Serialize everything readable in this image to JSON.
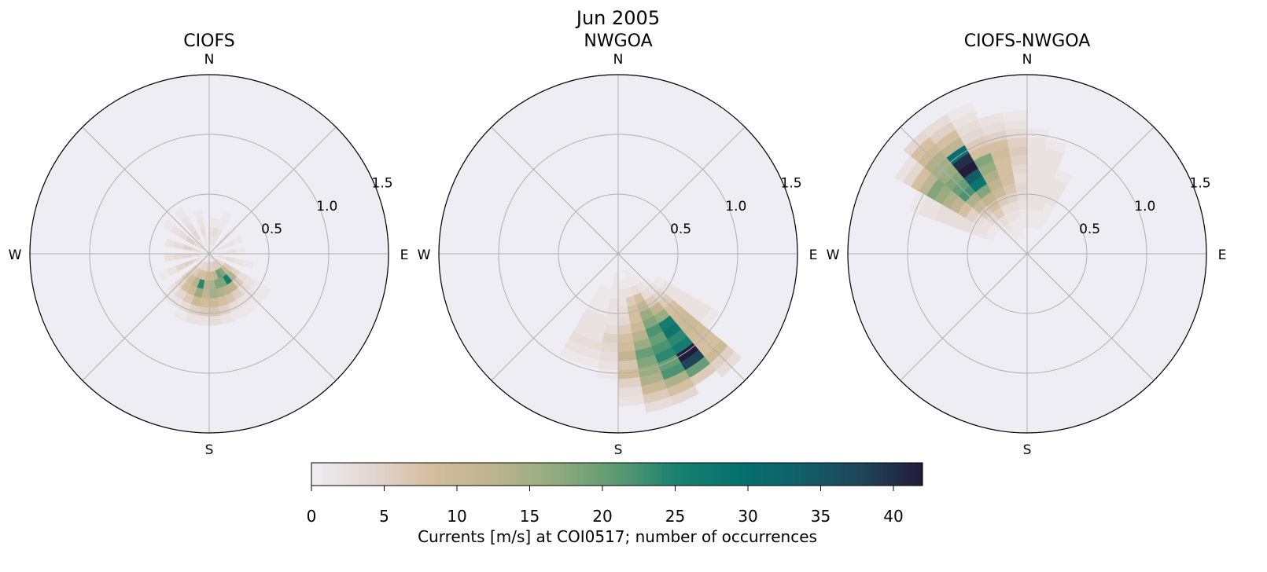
{
  "chart_data": {
    "type": "heatmap",
    "subtype": "polar-histogram",
    "title": "Jun 2005",
    "direction_bin_width_deg": 10,
    "speed_bin_width": 0.075,
    "rlim": [
      0,
      1.5
    ],
    "r_ticks": [
      "0.5",
      "1.0",
      "1.5"
    ],
    "r_tick_values": [
      0.5,
      1.0,
      1.5
    ],
    "compass_labels": {
      "n": "N",
      "e": "E",
      "s": "S",
      "w": "W"
    },
    "colorbar": {
      "label": "Currents [m/s] at COI0517; number of occurrences",
      "range": [
        0,
        42
      ],
      "ticks": [
        "0",
        "5",
        "10",
        "15",
        "20",
        "25",
        "30",
        "35",
        "40"
      ],
      "tick_values": [
        0,
        5,
        10,
        15,
        20,
        25,
        30,
        35,
        40
      ],
      "colors": [
        "#efedf1",
        "#e2d6d0",
        "#d3bd9b",
        "#bdb48e",
        "#90ab7e",
        "#5c9a72",
        "#17806f",
        "#06706e",
        "#115f68",
        "#1f4558",
        "#221b3b"
      ]
    },
    "panels": [
      {
        "title": "CIOFS",
        "bins": [
          {
            "dir": 5,
            "counts": [
              1,
              2,
              2,
              1
            ]
          },
          {
            "dir": 15,
            "counts": [
              1,
              2,
              3,
              1
            ]
          },
          {
            "dir": 25,
            "counts": [
              1,
              2,
              2,
              1,
              1
            ]
          },
          {
            "dir": 45,
            "counts": [
              1,
              2,
              2,
              1
            ]
          },
          {
            "dir": 65,
            "counts": [
              1,
              2,
              2,
              1
            ]
          },
          {
            "dir": 85,
            "counts": [
              1,
              1,
              2,
              1
            ]
          },
          {
            "dir": 105,
            "counts": [
              1,
              2,
              3,
              2,
              1
            ]
          },
          {
            "dir": 125,
            "counts": [
              1,
              3,
              6,
              5,
              3,
              2,
              1,
              1
            ]
          },
          {
            "dir": 135,
            "counts": [
              2,
              4,
              10,
              14,
              6,
              3,
              2,
              1
            ]
          },
          {
            "dir": 145,
            "counts": [
              2,
              6,
              18,
              26,
              12,
              5,
              2,
              1
            ]
          },
          {
            "dir": 155,
            "counts": [
              2,
              6,
              20,
              18,
              13,
              7,
              3,
              1
            ]
          },
          {
            "dir": 165,
            "counts": [
              2,
              5,
              12,
              18,
              14,
              8,
              5,
              2
            ]
          },
          {
            "dir": 175,
            "counts": [
              2,
              5,
              10,
              14,
              15,
              10,
              7,
              3
            ]
          },
          {
            "dir": 185,
            "counts": [
              2,
              5,
              10,
              13,
              12,
              9,
              6,
              2
            ]
          },
          {
            "dir": 195,
            "counts": [
              2,
              4,
              8,
              24,
              16,
              10,
              5,
              2
            ]
          },
          {
            "dir": 205,
            "counts": [
              1,
              4,
              8,
              13,
              10,
              6,
              3,
              1
            ]
          },
          {
            "dir": 215,
            "counts": [
              1,
              3,
              6,
              9,
              8,
              4,
              2
            ]
          },
          {
            "dir": 225,
            "counts": [
              1,
              3,
              5,
              6,
              4,
              2,
              1
            ]
          },
          {
            "dir": 245,
            "counts": [
              1,
              3,
              5,
              4,
              2,
              1
            ]
          },
          {
            "dir": 265,
            "counts": [
              1,
              3,
              4,
              3,
              2
            ]
          },
          {
            "dir": 285,
            "counts": [
              1,
              3,
              5,
              3,
              2
            ]
          },
          {
            "dir": 305,
            "counts": [
              1,
              3,
              5,
              3,
              2,
              1
            ]
          },
          {
            "dir": 325,
            "counts": [
              1,
              2,
              4,
              3,
              2,
              1
            ]
          },
          {
            "dir": 345,
            "counts": [
              1,
              2,
              3,
              2,
              1
            ]
          }
        ]
      },
      {
        "title": "NWGOA",
        "bins": [
          {
            "dir": 205,
            "counts": [
              0,
              0,
              0,
              0,
              1,
              1,
              1,
              2,
              2,
              2,
              3,
              2,
              1
            ]
          },
          {
            "dir": 195,
            "counts": [
              0,
              0,
              0,
              0,
              1,
              1,
              1,
              2,
              2,
              2,
              3,
              2,
              1
            ]
          },
          {
            "dir": 185,
            "counts": [
              0,
              0,
              1,
              1,
              1,
              2,
              2,
              2,
              3,
              5,
              4,
              3,
              2,
              1
            ]
          },
          {
            "dir": 175,
            "counts": [
              0,
              0,
              0,
              1,
              2,
              2,
              3,
              4,
              6,
              8,
              9,
              12,
              7,
              9,
              5,
              3,
              2
            ]
          },
          {
            "dir": 165,
            "counts": [
              0,
              0,
              0,
              1,
              2,
              6,
              8,
              8,
              10,
              13,
              16,
              20,
              18,
              16,
              14,
              10,
              6,
              3
            ]
          },
          {
            "dir": 155,
            "counts": [
              0,
              0,
              1,
              1,
              3,
              8,
              12,
              16,
              18,
              22,
              20,
              22,
              24,
              20,
              22,
              14,
              8,
              4
            ]
          },
          {
            "dir": 145,
            "counts": [
              0,
              0,
              0,
              1,
              2,
              3,
              6,
              12,
              16,
              26,
              28,
              24,
              26,
              42,
              38,
              20,
              6
            ]
          },
          {
            "dir": 135,
            "counts": [
              0,
              0,
              0,
              0,
              1,
              2,
              4,
              6,
              8,
              9,
              10,
              10,
              9,
              8,
              8,
              10,
              5,
              3
            ]
          },
          {
            "dir": 125,
            "counts": [
              0,
              0,
              0,
              0,
              0,
              1,
              2,
              2,
              2,
              2,
              2,
              2,
              1
            ]
          }
        ]
      },
      {
        "title": "CIOFS-NWGOA",
        "bins": [
          {
            "dir": 5,
            "counts": [
              0,
              0,
              0,
              1,
              1,
              2,
              2,
              2,
              2,
              2,
              2,
              2,
              2,
              1
            ]
          },
          {
            "dir": 15,
            "counts": [
              0,
              0,
              0,
              1,
              1,
              2,
              2,
              2,
              2,
              2,
              2,
              2,
              1
            ]
          },
          {
            "dir": 25,
            "counts": [
              0,
              0,
              0,
              1,
              1,
              1,
              2,
              2,
              2,
              1
            ]
          },
          {
            "dir": 355,
            "counts": [
              0,
              0,
              0,
              1,
              1,
              2,
              3,
              4,
              3,
              4,
              5,
              6,
              5,
              3,
              2,
              1
            ]
          },
          {
            "dir": 345,
            "counts": [
              0,
              0,
              1,
              1,
              2,
              3,
              5,
              7,
              8,
              8,
              8,
              9,
              8,
              5,
              3,
              2
            ]
          },
          {
            "dir": 335,
            "counts": [
              0,
              0,
              1,
              1,
              2,
              3,
              6,
              10,
              12,
              14,
              16,
              18,
              8,
              6,
              4,
              3,
              2,
              1
            ]
          },
          {
            "dir": 325,
            "counts": [
              0,
              0,
              1,
              2,
              3,
              6,
              8,
              12,
              18,
              28,
              34,
              42,
              40,
              30,
              12,
              8,
              5,
              3
            ]
          },
          {
            "dir": 315,
            "counts": [
              0,
              0,
              0,
              1,
              2,
              4,
              6,
              10,
              14,
              22,
              20,
              18,
              16,
              15,
              14,
              10,
              8,
              4
            ]
          },
          {
            "dir": 305,
            "counts": [
              0,
              0,
              0,
              0,
              1,
              2,
              3,
              5,
              8,
              12,
              14,
              16,
              18,
              12,
              8,
              4,
              2
            ]
          },
          {
            "dir": 295,
            "counts": [
              0,
              0,
              0,
              0,
              1,
              2,
              2,
              3,
              3,
              3,
              3,
              2,
              2,
              1
            ]
          }
        ]
      }
    ]
  }
}
